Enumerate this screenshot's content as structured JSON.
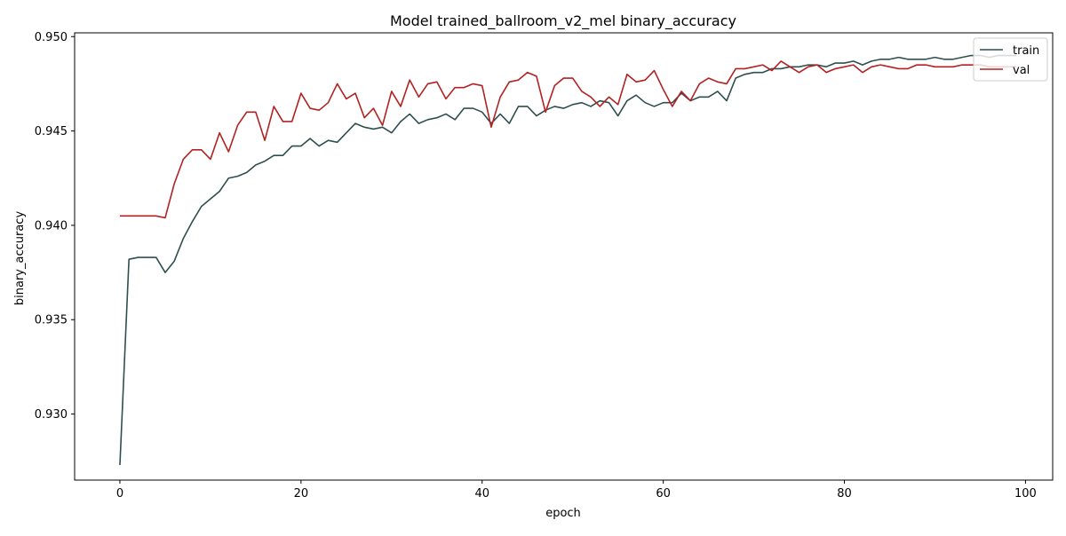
{
  "chart_data": {
    "type": "line",
    "title": "Model trained_ballroom_v2_mel binary_accuracy",
    "xlabel": "epoch",
    "ylabel": "binary_accuracy",
    "xlim": [
      -5,
      103
    ],
    "ylim": [
      0.9265,
      0.9502
    ],
    "x_ticks": [
      0,
      20,
      40,
      60,
      80,
      100
    ],
    "y_ticks": [
      0.93,
      0.935,
      0.94,
      0.945,
      0.95
    ],
    "x_tick_labels": [
      "0",
      "20",
      "40",
      "60",
      "80",
      "100"
    ],
    "y_tick_labels": [
      "0.930",
      "0.935",
      "0.940",
      "0.945",
      "0.950"
    ],
    "legend_position": "top-right",
    "grid": false,
    "series": [
      {
        "name": "train",
        "color": "#2f4f4f",
        "values": [
          0.9273,
          0.9382,
          0.9383,
          0.9383,
          0.9383,
          0.9375,
          0.9381,
          0.9393,
          0.9402,
          0.941,
          0.9414,
          0.9418,
          0.9425,
          0.9426,
          0.9428,
          0.9432,
          0.9434,
          0.9437,
          0.9437,
          0.9442,
          0.9442,
          0.9446,
          0.9442,
          0.9445,
          0.9444,
          0.9449,
          0.9454,
          0.9452,
          0.9451,
          0.9452,
          0.9449,
          0.9455,
          0.9459,
          0.9454,
          0.9456,
          0.9457,
          0.9459,
          0.9456,
          0.9462,
          0.9462,
          0.946,
          0.9454,
          0.9459,
          0.9454,
          0.9463,
          0.9463,
          0.9458,
          0.9461,
          0.9463,
          0.9462,
          0.9464,
          0.9465,
          0.9463,
          0.9466,
          0.9465,
          0.9458,
          0.9466,
          0.9469,
          0.9465,
          0.9463,
          0.9465,
          0.9465,
          0.947,
          0.9466,
          0.9468,
          0.9468,
          0.9471,
          0.9466,
          0.9478,
          0.948,
          0.9481,
          0.9481,
          0.9483,
          0.9483,
          0.9484,
          0.9484,
          0.9485,
          0.9485,
          0.9484,
          0.9486,
          0.9486,
          0.9487,
          0.9485,
          0.9487,
          0.9488,
          0.9488,
          0.9489,
          0.9488,
          0.9488,
          0.9488,
          0.9489,
          0.9488,
          0.9488,
          0.9489,
          0.949,
          0.949,
          0.9489,
          0.949,
          0.949,
          0.949
        ]
      },
      {
        "name": "val",
        "color": "#b22222",
        "values": [
          0.9405,
          0.9405,
          0.9405,
          0.9405,
          0.9405,
          0.9404,
          0.9422,
          0.9435,
          0.944,
          0.944,
          0.9435,
          0.9449,
          0.9439,
          0.9453,
          0.946,
          0.946,
          0.9445,
          0.9463,
          0.9455,
          0.9455,
          0.947,
          0.9462,
          0.9461,
          0.9465,
          0.9475,
          0.9467,
          0.947,
          0.9457,
          0.9462,
          0.9453,
          0.9471,
          0.9463,
          0.9477,
          0.9468,
          0.9475,
          0.9476,
          0.9467,
          0.9473,
          0.9473,
          0.9475,
          0.9474,
          0.9452,
          0.9468,
          0.9476,
          0.9477,
          0.9481,
          0.9479,
          0.946,
          0.9474,
          0.9478,
          0.9478,
          0.9471,
          0.9468,
          0.9463,
          0.9468,
          0.9464,
          0.948,
          0.9476,
          0.9477,
          0.9482,
          0.9472,
          0.9463,
          0.9471,
          0.9466,
          0.9475,
          0.9478,
          0.9476,
          0.9475,
          0.9483,
          0.9483,
          0.9484,
          0.9485,
          0.9482,
          0.9487,
          0.9484,
          0.9481,
          0.9484,
          0.9485,
          0.9481,
          0.9483,
          0.9484,
          0.9485,
          0.9481,
          0.9484,
          0.9485,
          0.9484,
          0.9483,
          0.9483,
          0.9485,
          0.9485,
          0.9484,
          0.9484,
          0.9484,
          0.9485,
          0.9485,
          0.9485,
          0.9484,
          0.9484,
          0.9484,
          0.9484
        ]
      }
    ]
  }
}
